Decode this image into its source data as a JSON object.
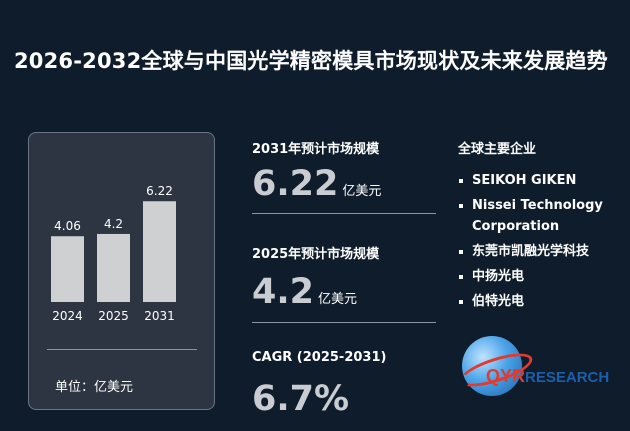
{
  "title": "2026-2032全球与中国光学精密模具市场现状及未来发展趋势",
  "chart_data": {
    "type": "bar",
    "categories": [
      "2024",
      "2025",
      "2031"
    ],
    "values": [
      4.06,
      4.2,
      6.22
    ],
    "data_labels": [
      "4.06",
      "4.2",
      "6.22"
    ],
    "title": "",
    "xlabel": "",
    "ylabel": "",
    "unit_note": "单位：亿美元",
    "bar_color": "#cfd0d2"
  },
  "metrics": {
    "m2031": {
      "label": "2031年预计市场规模",
      "value": "6.22",
      "unit": "亿美元"
    },
    "m2025": {
      "label": "2025年预计市场规模",
      "value": "4.2",
      "unit": "亿美元"
    },
    "cagr": {
      "label": "CAGR (2025-2031)",
      "value": "6.7%"
    }
  },
  "companies": {
    "title": "全球主要企业",
    "items": [
      "SEIKOH GIKEN",
      "Nissei Technology Corporation",
      "东莞市凯融光学科技",
      "中扬光电",
      "伯特光电"
    ]
  },
  "logo": {
    "q": "Q",
    "yr": "YR",
    "text": "RESEARCH"
  },
  "colors": {
    "background": "#0f1c2b",
    "card": "#2c3541",
    "value_text": "#c9ccd1",
    "logo_red": "#e23b2e",
    "logo_blue": "#1c5fa8"
  }
}
